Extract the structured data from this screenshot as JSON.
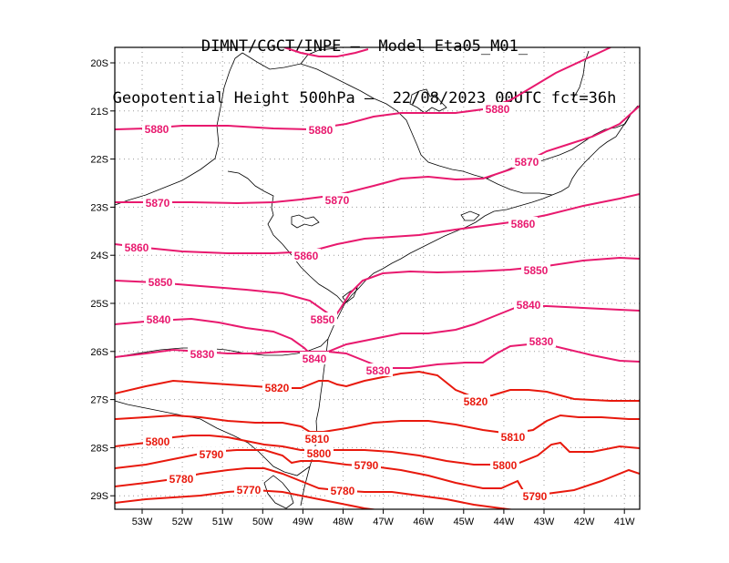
{
  "title": {
    "line1": "DIMNT/CGCT/INPE –  Model Eta05_M01_",
    "line2": "Geopotential Height 500hPa –  22/08/2023 00UTC fct=36h"
  },
  "axes": {
    "x_ticks": [
      "53W",
      "52W",
      "51W",
      "50W",
      "49W",
      "48W",
      "47W",
      "46W",
      "45W",
      "44W",
      "43W",
      "42W",
      "41W"
    ],
    "y_ticks": [
      "20S",
      "21S",
      "22S",
      "23S",
      "24S",
      "25S",
      "26S",
      "27S",
      "28S",
      "29S"
    ]
  },
  "colors": {
    "high": "#e8196e",
    "low": "#e8190d",
    "coast": "#000000",
    "grid": "#9a9a9a"
  },
  "contour_labels": [
    {
      "text": "5880",
      "level": 5880
    },
    {
      "text": "5880",
      "level": 5880
    },
    {
      "text": "5880",
      "level": 5880
    },
    {
      "text": "5870",
      "level": 5870
    },
    {
      "text": "5870",
      "level": 5870
    },
    {
      "text": "5870",
      "level": 5870
    },
    {
      "text": "5860",
      "level": 5860
    },
    {
      "text": "5860",
      "level": 5860
    },
    {
      "text": "5860",
      "level": 5860
    },
    {
      "text": "5850",
      "level": 5850
    },
    {
      "text": "5850",
      "level": 5850
    },
    {
      "text": "5850",
      "level": 5850
    },
    {
      "text": "5840",
      "level": 5840
    },
    {
      "text": "5840",
      "level": 5840
    },
    {
      "text": "5840",
      "level": 5840
    },
    {
      "text": "5830",
      "level": 5830
    },
    {
      "text": "5830",
      "level": 5830
    },
    {
      "text": "5830",
      "level": 5830
    },
    {
      "text": "5820",
      "level": 5820
    },
    {
      "text": "5820",
      "level": 5820
    },
    {
      "text": "5810",
      "level": 5810
    },
    {
      "text": "5810",
      "level": 5810
    },
    {
      "text": "5800",
      "level": 5800
    },
    {
      "text": "5800",
      "level": 5800
    },
    {
      "text": "5800",
      "level": 5800
    },
    {
      "text": "5790",
      "level": 5790
    },
    {
      "text": "5790",
      "level": 5790
    },
    {
      "text": "5790",
      "level": 5790
    },
    {
      "text": "5780",
      "level": 5780
    },
    {
      "text": "5780",
      "level": 5780
    },
    {
      "text": "5770",
      "level": 5770
    }
  ]
}
